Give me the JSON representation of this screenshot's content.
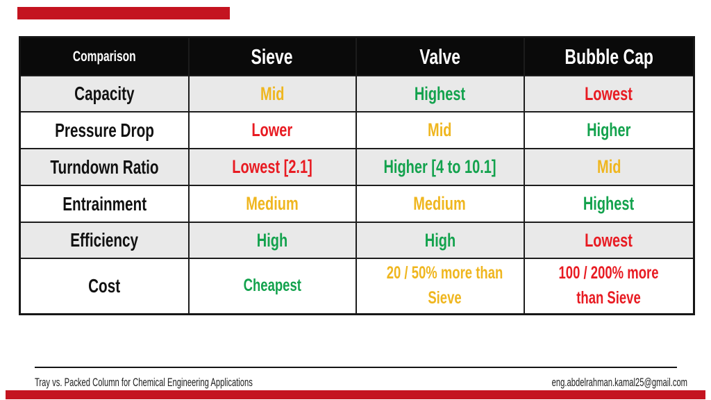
{
  "colors": {
    "red": "#E81B22",
    "green": "#13A24D",
    "yellow": "#EFB61F",
    "accent_bar": "#C41420",
    "header_bg": "#0A0A0A",
    "row_shade": "#E9E9E9"
  },
  "table": {
    "headers": [
      "Comparison",
      "Sieve",
      "Valve",
      "Bubble Cap"
    ],
    "rows": [
      {
        "label": "Capacity",
        "cells": [
          {
            "text": "Mid",
            "color": "yellow"
          },
          {
            "text": "Highest",
            "color": "green"
          },
          {
            "text": "Lowest",
            "color": "red"
          }
        ]
      },
      {
        "label": "Pressure Drop",
        "cells": [
          {
            "text": "Lower",
            "color": "red"
          },
          {
            "text": "Mid",
            "color": "yellow"
          },
          {
            "text": "Higher",
            "color": "green"
          }
        ]
      },
      {
        "label": "Turndown Ratio",
        "cells": [
          {
            "text": "Lowest [2.1]",
            "color": "red"
          },
          {
            "text": "Higher [4 to 10.1]",
            "color": "green"
          },
          {
            "text": "Mid",
            "color": "yellow"
          }
        ]
      },
      {
        "label": "Entrainment",
        "cells": [
          {
            "text": "Medium",
            "color": "yellow"
          },
          {
            "text": "Medium",
            "color": "yellow"
          },
          {
            "text": "Highest",
            "color": "green"
          }
        ]
      },
      {
        "label": "Efficiency",
        "cells": [
          {
            "text": "High",
            "color": "green"
          },
          {
            "text": "High",
            "color": "green"
          },
          {
            "text": "Lowest",
            "color": "red"
          }
        ]
      },
      {
        "label": "Cost",
        "cells": [
          {
            "text": "Cheapest",
            "color": "green"
          },
          {
            "text": "20 / 50% more than Sieve",
            "color": "yellow"
          },
          {
            "text": "100 / 200% more than Sieve",
            "color": "red"
          }
        ]
      }
    ]
  },
  "footer": {
    "left": "Tray vs. Packed Column for Chemical Engineering Applications",
    "right": "eng.abdelrahman.kamal25@gmail.com"
  }
}
